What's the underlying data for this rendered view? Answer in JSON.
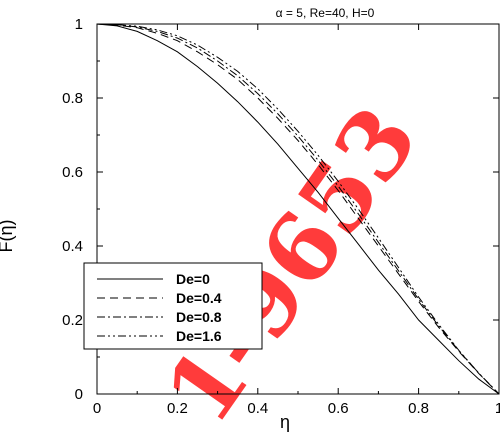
{
  "chart_data": {
    "type": "line",
    "title": "α = 5, Re=40, H=0",
    "xlabel": "η",
    "ylabel": "F(η)",
    "xlim": [
      0,
      1
    ],
    "ylim": [
      0,
      1
    ],
    "xticks": [
      "0",
      "0.2",
      "0.4",
      "0.6",
      "0.8",
      "1"
    ],
    "yticks": [
      "0",
      "0.2",
      "0.4",
      "0.6",
      "0.8",
      "1"
    ],
    "grid": false,
    "legend_position": "lower-left",
    "x": [
      0,
      0.05,
      0.1,
      0.15,
      0.2,
      0.25,
      0.3,
      0.35,
      0.4,
      0.45,
      0.5,
      0.55,
      0.6,
      0.65,
      0.7,
      0.75,
      0.8,
      0.85,
      0.9,
      0.95,
      1.0
    ],
    "series": [
      {
        "name": "De=0",
        "style": "solid",
        "values": [
          1.0,
          0.995,
          0.98,
          0.955,
          0.925,
          0.885,
          0.84,
          0.79,
          0.735,
          0.675,
          0.61,
          0.545,
          0.475,
          0.405,
          0.335,
          0.27,
          0.2,
          0.145,
          0.09,
          0.04,
          0.0
        ]
      },
      {
        "name": "De=0.4",
        "style": "dashed",
        "values": [
          1.0,
          0.997,
          0.99,
          0.975,
          0.955,
          0.925,
          0.89,
          0.85,
          0.8,
          0.745,
          0.685,
          0.62,
          0.55,
          0.475,
          0.4,
          0.325,
          0.25,
          0.18,
          0.115,
          0.055,
          0.0
        ]
      },
      {
        "name": "De=0.8",
        "style": "dashdot",
        "values": [
          1.0,
          0.998,
          0.992,
          0.98,
          0.962,
          0.935,
          0.9,
          0.86,
          0.812,
          0.757,
          0.697,
          0.632,
          0.562,
          0.487,
          0.41,
          0.333,
          0.256,
          0.184,
          0.117,
          0.056,
          0.0
        ]
      },
      {
        "name": "De=1.6",
        "style": "dashdotdot",
        "values": [
          1.0,
          0.998,
          0.994,
          0.984,
          0.968,
          0.943,
          0.91,
          0.872,
          0.825,
          0.77,
          0.71,
          0.645,
          0.575,
          0.5,
          0.422,
          0.342,
          0.262,
          0.188,
          0.118,
          0.056,
          0.0
        ]
      }
    ]
  },
  "watermark": "1-9653"
}
